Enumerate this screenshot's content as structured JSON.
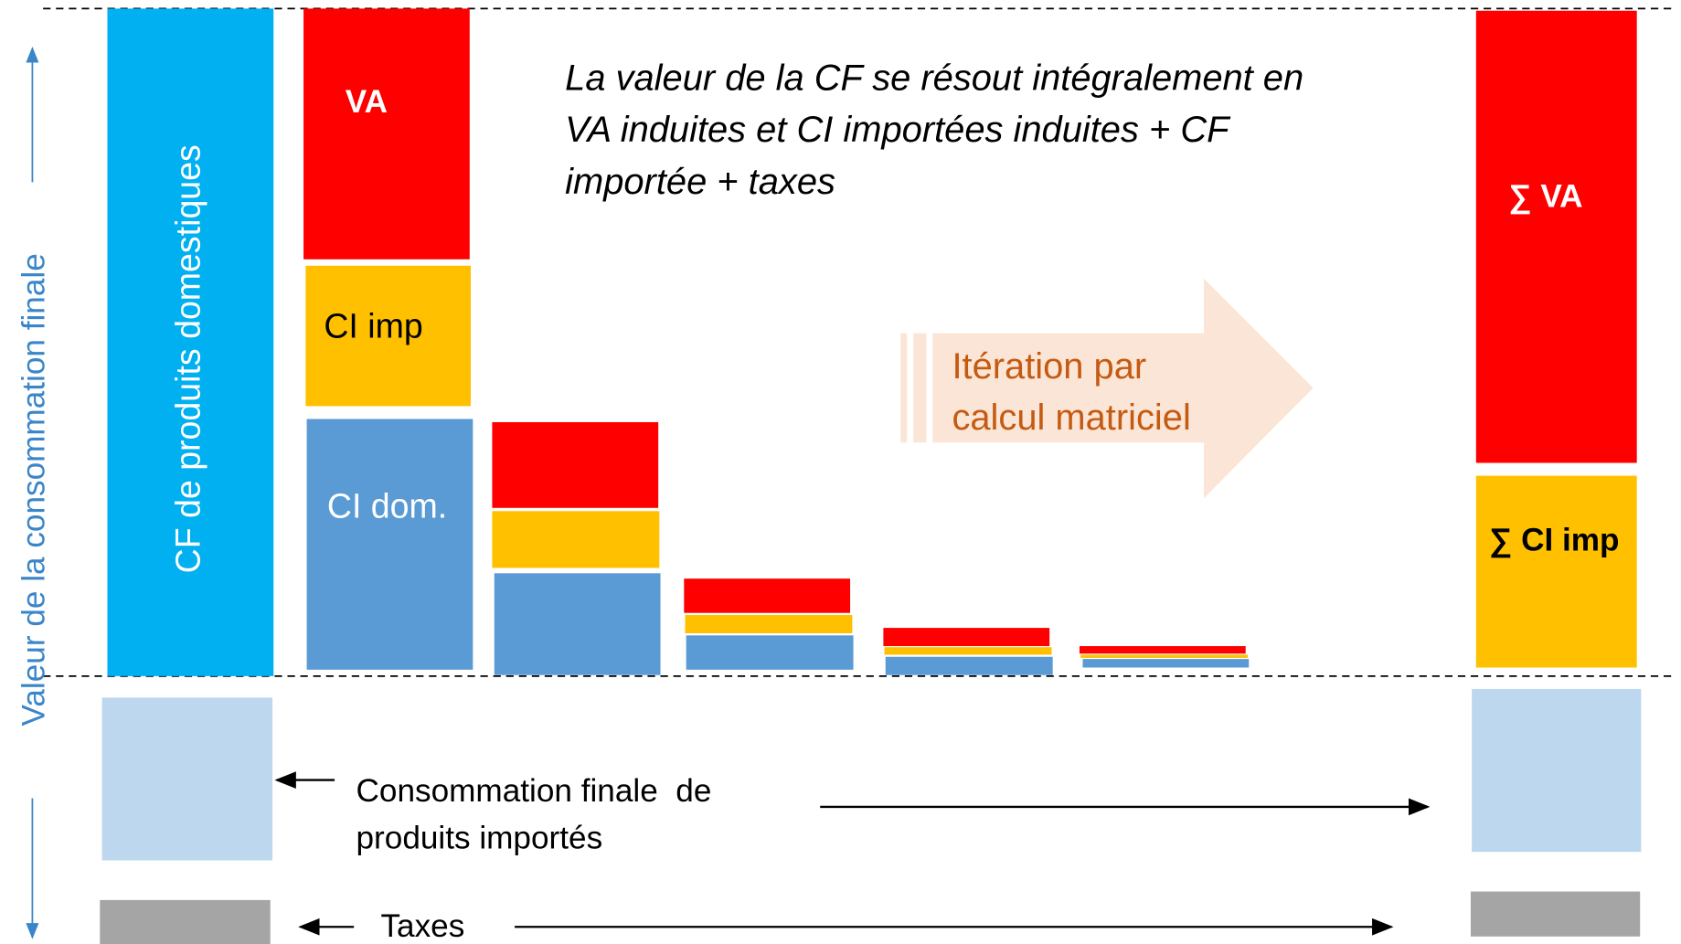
{
  "axis_label": "Valeur de la consommation finale",
  "domestic_bar": "CF de produits domestiques",
  "segments": {
    "va": "VA",
    "ci_imp": "CI imp",
    "ci_dom": "CI dom."
  },
  "annotation": [
    "La valeur de la CF se résout intégralement en",
    "VA induites et CI importées induites + CF",
    "importée + taxes"
  ],
  "iteration": [
    "Itération par",
    "calcul matriciel"
  ],
  "totals": {
    "va": "∑ VA",
    "ci_imp": "∑ CI imp"
  },
  "imported": [
    "Consommation finale  de",
    "produits importés"
  ],
  "taxes": "Taxes"
}
